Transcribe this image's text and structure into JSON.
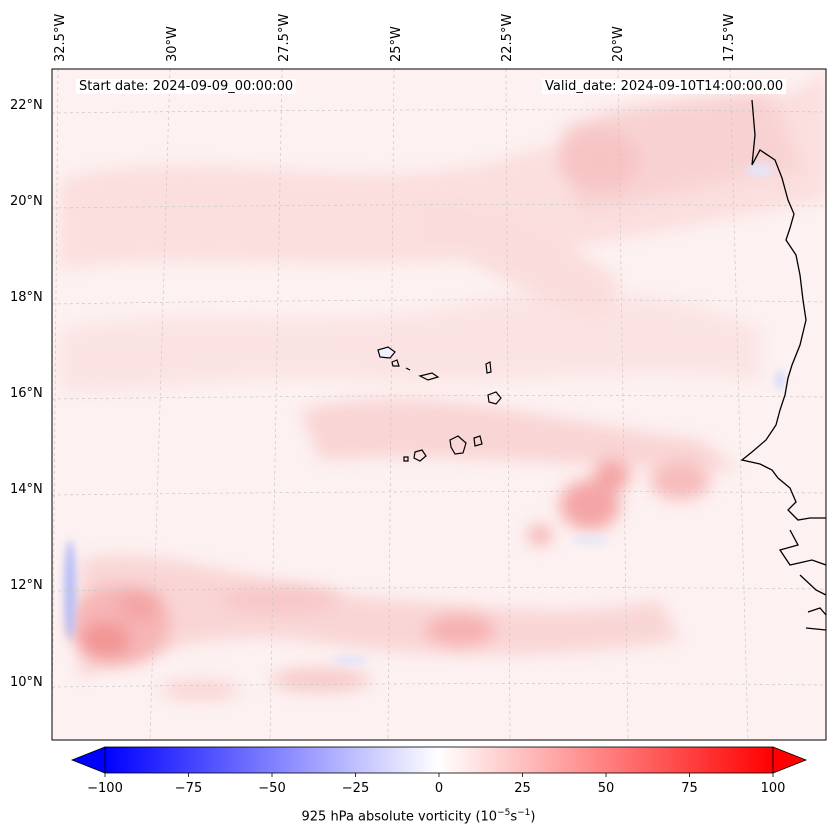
{
  "map": {
    "start_date": "Start date: 2024-09-09_00:00:00",
    "valid_date": "Valid_date: 2024-09-10T14:00:00.00",
    "longitude_labels": [
      "32.5°W",
      "30°W",
      "27.5°W",
      "25°W",
      "22.5°W",
      "20°W",
      "17.5°W"
    ],
    "latitude_labels": [
      "22°N",
      "20°N",
      "18°N",
      "16°N",
      "14°N",
      "12°N",
      "10°N"
    ],
    "colorbar": {
      "ticks": [
        "−100",
        "−75",
        "−50",
        "−25",
        "0",
        "25",
        "50",
        "75",
        "100"
      ],
      "label": "925 hPa absolute vorticity (10",
      "label_exp1": "−5",
      "label_mid": "s",
      "label_exp2": "−1",
      "label_end": ")",
      "min_color": "#0000ff",
      "mid_color": "#ffffff",
      "max_color": "#ff0000"
    },
    "field_name": "925 hPa absolute vorticity"
  }
}
